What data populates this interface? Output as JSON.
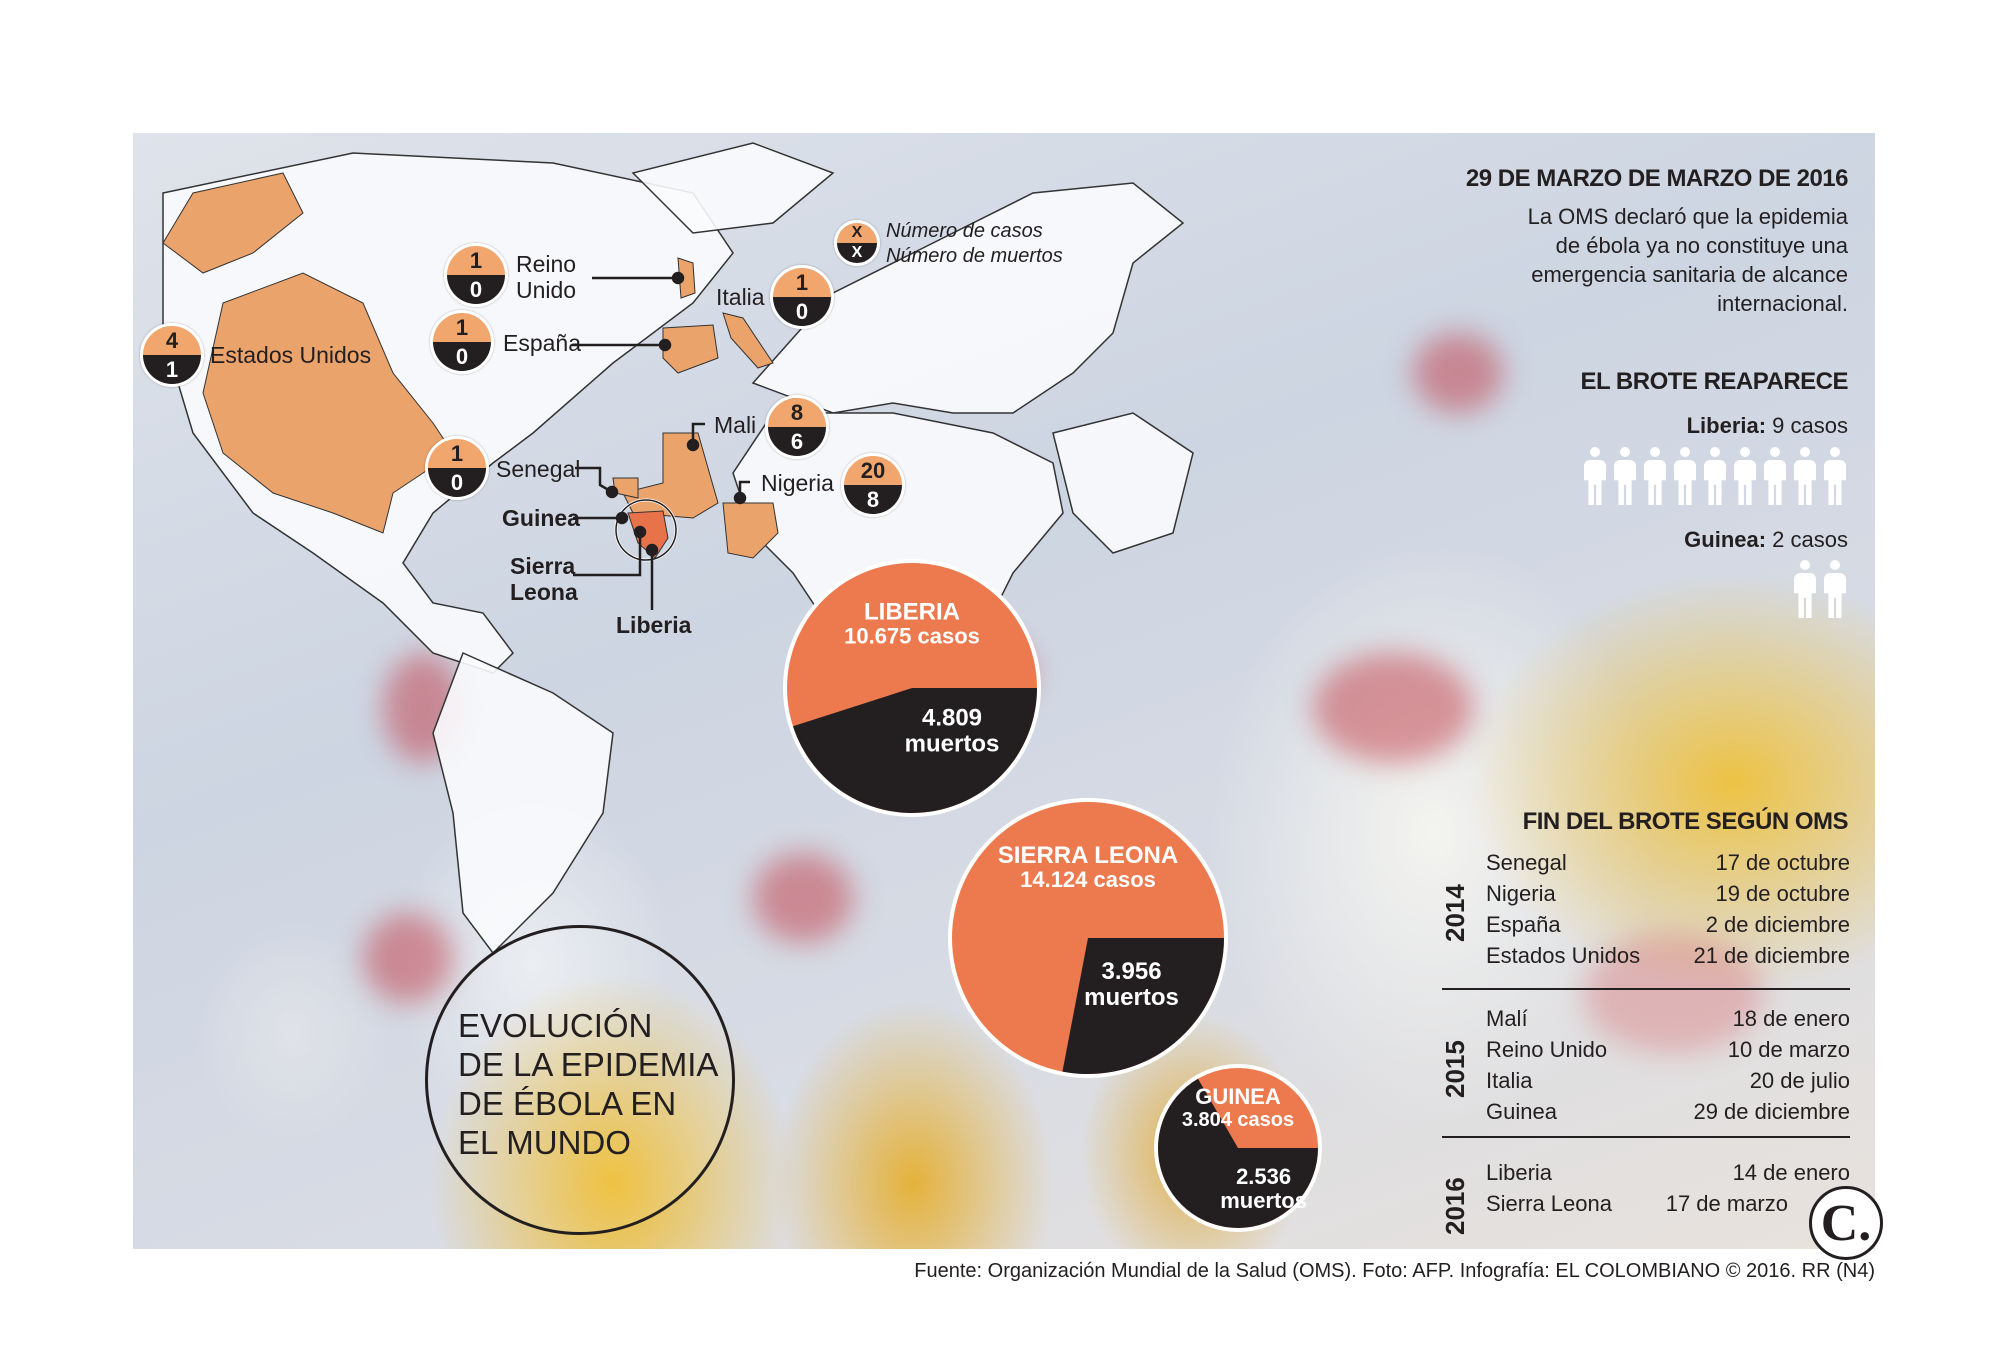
{
  "colors": {
    "cases": "#ec7a4e",
    "deaths": "#231f20",
    "badge_top": "#f0a66c",
    "affected_country": "#eba36c",
    "outbreak_country": "#e8734a"
  },
  "legend": {
    "top": "X",
    "bottom": "X",
    "cases_label": "Número de casos",
    "deaths_label": "Número de muertos"
  },
  "map_badges": [
    {
      "country": "Estados Unidos",
      "cases": "4",
      "deaths": "1"
    },
    {
      "country": "Reino Unido",
      "cases": "1",
      "deaths": "0"
    },
    {
      "country": "España",
      "cases": "1",
      "deaths": "0"
    },
    {
      "country": "Italia",
      "cases": "1",
      "deaths": "0"
    },
    {
      "country": "Mali",
      "cases": "8",
      "deaths": "6"
    },
    {
      "country": "Senegal",
      "cases": "1",
      "deaths": "0"
    },
    {
      "country": "Nigeria",
      "cases": "20",
      "deaths": "8"
    }
  ],
  "map_labels": {
    "reino_1": "Reino",
    "reino_2": "Unido",
    "guinea": "Guinea",
    "sierra_1": "Sierra",
    "sierra_2": "Leona",
    "liberia": "Liberia"
  },
  "chart_data": {
    "type": "pie",
    "pies": [
      {
        "name": "LIBERIA",
        "cases_label": "10.675 casos",
        "deaths_label": "4.809",
        "deaths_unit": "muertos",
        "cases": 10675,
        "deaths": 4809
      },
      {
        "name": "SIERRA LEONA",
        "cases_label": "14.124 casos",
        "deaths_label": "3.956",
        "deaths_unit": "muertos",
        "cases": 14124,
        "deaths": 3956
      },
      {
        "name": "GUINEA",
        "cases_label": "3.804 casos",
        "deaths_label": "2.536",
        "deaths_unit": "muertos",
        "cases": 3804,
        "deaths": 2536
      }
    ]
  },
  "title": {
    "l1": "EVOLUCIÓN",
    "l2": "DE LA EPIDEMIA",
    "l3": "DE ÉBOLA EN",
    "l4": "EL MUNDO"
  },
  "announcement": {
    "heading": "29 DE MARZO DE MARZO DE 2016",
    "l1": "La OMS declaró que la epidemia",
    "l2": "de ébola ya no constituye una",
    "l3": "emergencia sanitaria de alcance",
    "l4": "internacional."
  },
  "reappears": {
    "heading": "EL BROTE REAPARECE",
    "liberia_name": "Liberia:",
    "liberia_cases": " 9 casos",
    "liberia_count": 9,
    "guinea_name": "Guinea:",
    "guinea_cases": " 2 casos",
    "guinea_count": 2
  },
  "end": {
    "heading": "FIN DEL BROTE SEGÚN OMS",
    "years": [
      {
        "year": "2014",
        "rows": [
          [
            "Senegal",
            "17 de octubre"
          ],
          [
            "Nigeria",
            "19 de octubre"
          ],
          [
            "España",
            "2 de diciembre"
          ],
          [
            "Estados Unidos",
            "21 de diciembre"
          ]
        ]
      },
      {
        "year": "2015",
        "rows": [
          [
            "Malí",
            "18 de enero"
          ],
          [
            "Reino Unido",
            "10 de marzo"
          ],
          [
            "Italia",
            "20 de julio"
          ],
          [
            "Guinea",
            "29 de diciembre"
          ]
        ]
      },
      {
        "year": "2016",
        "rows": [
          [
            "Liberia",
            "14 de enero"
          ],
          [
            "Sierra Leona",
            "17 de marzo"
          ]
        ]
      }
    ]
  },
  "logo": "C.",
  "footer": "Fuente: Organización Mundial de la Salud (OMS). Foto: AFP. Infografía: EL COLOMBIANO © 2016. RR (N4)"
}
